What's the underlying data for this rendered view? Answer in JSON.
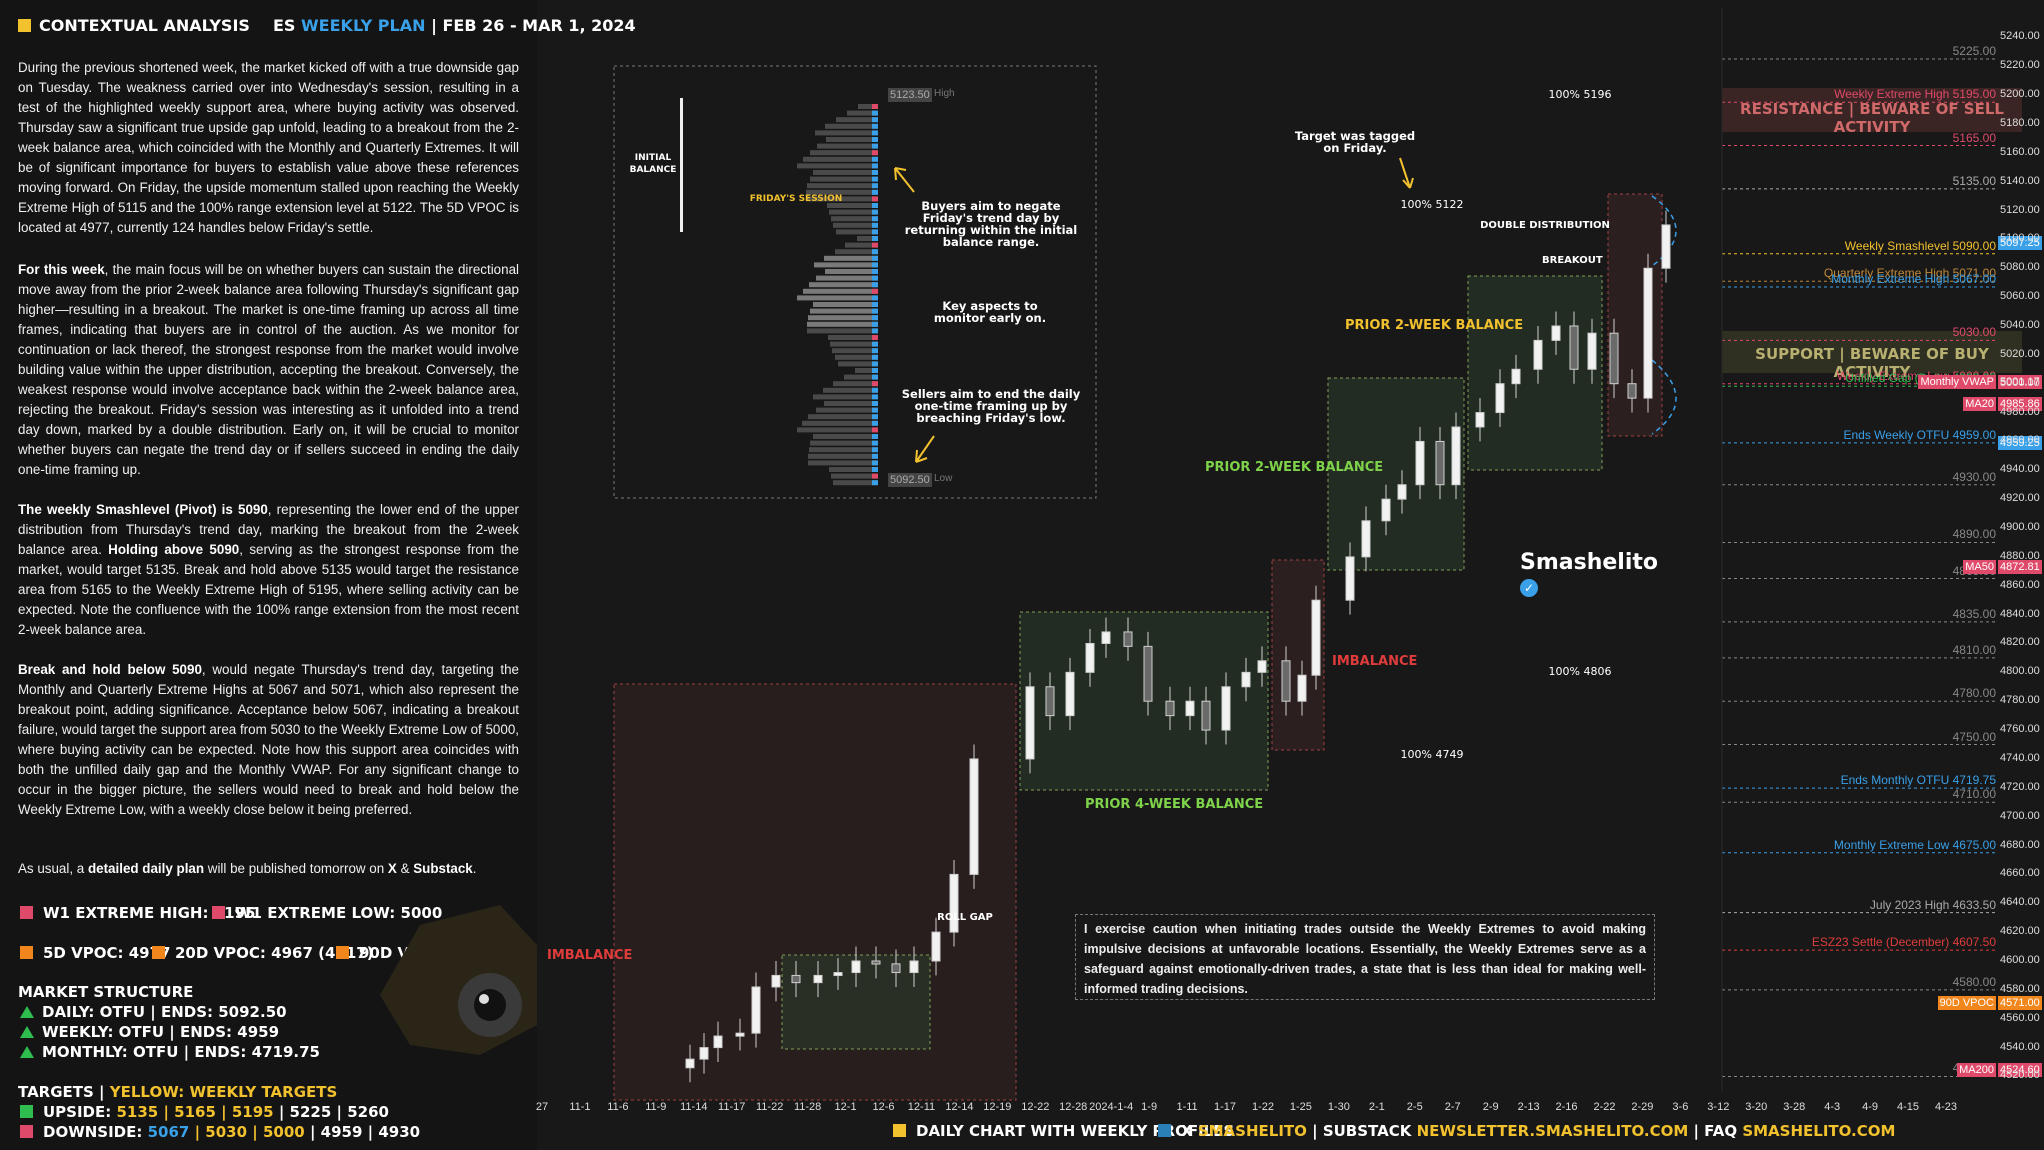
{
  "header": {
    "left_title": "CONTEXTUAL ANALYSIS",
    "right_prefix": "ES",
    "right_highlight": "WEEKLY PLAN",
    "right_suffix": "| FEB 26 - MAR 1, 2024"
  },
  "paragraphs": {
    "p1": "During the previous shortened week, the market kicked off with a true downside gap on Tuesday. The weakness carried over into Wednesday's session, resulting in a test of the highlighted weekly support area, where buying activity was observed. Thursday saw a significant true upside gap unfold, leading to a breakout from the 2-week balance area, which coincided with the Monthly and Quarterly Extremes. It will be of significant importance for buyers to establish value above these references moving forward. On Friday, the upside momentum stalled upon reaching the Weekly Extreme High of 5115 and the 100% range extension level at 5122. The 5D VPOC is located at 4977, currently 124 handles below Friday's settle.",
    "p2_bold": "For this week",
    "p2": ", the main focus will be on whether buyers can sustain the directional move away from the prior 2-week balance area following Thursday's significant gap higher—resulting in a breakout. The market is one-time framing up across all time frames, indicating that buyers are in control of the auction. As we monitor for continuation or lack thereof, the strongest response from the market would involve building value within the upper distribution, accepting the breakout. Conversely, the weakest response would involve acceptance back within the 2-week balance area, rejecting the breakout. Friday's session was interesting as it unfolded into a trend day down, marked by a double distribution. Early on, it will be crucial to monitor whether buyers can negate the trend day or if sellers succeed in ending the daily one-time framing up.",
    "p3_bold1": "The weekly Smashlevel (Pivot) is 5090",
    "p3a": ", representing the lower end of the upper distribution from Thursday's trend day, marking the breakout from the 2-week balance area.",
    "p3_bold2": "Holding above 5090",
    "p3b": ", serving as the strongest response from the market, would target 5135. Break and hold above 5135 would target the resistance area from 5165 to the Weekly Extreme High of 5195, where selling activity can be expected. Note the confluence with the 100% range extension from the most recent 2-week balance area.",
    "p4_bold": "Break and hold below 5090",
    "p4": ", would negate Thursday's trend day, targeting the Monthly and Quarterly Extreme Highs at 5067 and 5071, which also represent the breakout point, adding significance. Acceptance below 5067, indicating a breakout failure, would target the support area from 5030 to the Weekly Extreme Low of 5000, where buying activity can be expected. Note how this support area coincides with both the unfilled daily gap and the Monthly VWAP. For any significant change to occur in the bigger picture, the sellers would need to break and hold below the Weekly Extreme Low, with a weekly close below it being preferred.",
    "p5a": "As usual, a ",
    "p5_bold": "detailed daily plan",
    "p5b": " will be published tomorrow on ",
    "p5_x": "X",
    "p5c": " & ",
    "p5_sub": "Substack",
    "p5d": "."
  },
  "stats": {
    "w1_high": "W1 EXTREME HIGH: 5195",
    "w1_low": "W1 EXTREME LOW: 5000",
    "vpoc5": "5D VPOC: 4977",
    "vpoc20": "20D VPOC: 4967 (4917)",
    "vpoc90": "90D VPOC: 4571",
    "market_structure": "MARKET STRUCTURE",
    "daily": "DAILY: OTFU | ENDS: 5092.50",
    "weekly": "WEEKLY: OTFU | ENDS: 4959",
    "monthly": "MONTHLY: OTFU | ENDS: 4719.75",
    "targets_label": "TARGETS |",
    "targets_yellow": "YELLOW: WEEKLY TARGETS",
    "upside_label": "UPSIDE:",
    "upside_yellow": "5135 | 5165 | 5195",
    "upside_white": "| 5225 | 5260",
    "downside_label": "DOWNSIDE:",
    "downside_blue": "5067",
    "downside_yellow": "| 5030 | 5000",
    "downside_white": "| 4959 | 4930"
  },
  "colors": {
    "accent_yellow": "#f2c12e",
    "accent_blue": "#3aa0e8",
    "extreme_pink": "#e04a6a",
    "vpoc_orange": "#f0861c",
    "up_green": "#2ebd4e",
    "imbalance_red": "#e03c3c",
    "balance_green": "#7fd34a",
    "balance_yellow": "#f2c12e"
  },
  "footer": {
    "chart_label": "DAILY CHART WITH WEEKLY PROFILES",
    "x_label": "X",
    "x_handle": "SMASHELITO",
    "substack_label": "| SUBSTACK",
    "substack_url": "NEWSLETTER.SMASHELITO.COM",
    "faq_label": "| FAQ",
    "faq_url": "SMASHELITO.COM"
  },
  "annotations": {
    "initial_balance": "INITIAL\nBALANCE",
    "fridays_session": "FRIDAY'S SESSION",
    "high": "High",
    "low": "Low",
    "high_price": "5123.50",
    "low_price": "5092.50",
    "buyers_aim": "Buyers aim to negate Friday's trend day by returning within the initial balance range.",
    "key_aspects": "Key aspects to monitor early on.",
    "sellers_aim": "Sellers aim to end the daily one-time framing up by breaching Friday's low.",
    "target_tagged": "Target was tagged on Friday.",
    "double_distribution": "DOUBLE DISTRIBUTION",
    "breakout": "BREAKOUT",
    "prior_2wk_top": "PRIOR 2-WEEK BALANCE",
    "prior_2wk_mid": "PRIOR 2-WEEK BALANCE",
    "prior_4wk": "PRIOR 4-WEEK BALANCE",
    "imbalance_left": "IMBALANCE",
    "imbalance_mid": "IMBALANCE",
    "roll_gap": "ROLL GAP",
    "ext_5196": "100% 5196",
    "ext_5122": "100% 5122",
    "ext_4806": "100% 4806",
    "ext_4749": "100% 4749",
    "brand": "Smashelito",
    "resistance": "RESISTANCE | BEWARE OF SELL ACTIVITY",
    "support": "SUPPORT | BEWARE OF BUY ACTIVITY",
    "note": "I exercise caution when initiating trades outside the Weekly Extremes to avoid making impulsive decisions at unfavorable locations. Essentially, the Weekly Extremes serve as a safeguard against emotionally-driven trades, a state that is less than ideal for making well-informed trading decisions."
  },
  "price_levels": [
    {
      "label": "Weekly Extreme High",
      "value": "5195.00",
      "color": "#e04a6a"
    },
    {
      "label": "",
      "value": "5165.00",
      "color": "#e04a6a"
    },
    {
      "label": "",
      "value": "5135.00",
      "color": "#aaaaaa"
    },
    {
      "label": "Weekly Smashlevel",
      "value": "5090.00",
      "color": "#f2c12e"
    },
    {
      "label": "Quarterly Extreme High",
      "value": "5071.00",
      "color": "#c08a3a"
    },
    {
      "label": "Monthly Extreme High",
      "value": "5067.00",
      "color": "#3aa0e8"
    },
    {
      "label": "",
      "value": "5030.00",
      "color": "#e04a6a"
    },
    {
      "label": "Weekly Extreme Low",
      "value": "5000.00",
      "color": "#e04a6a"
    },
    {
      "label": "Unfilled Gap (Daily)",
      "value": "4998.25",
      "color": "#2ebd4e"
    },
    {
      "label": "Ends Weekly OTFU",
      "value": "4959.00",
      "color": "#3aa0e8"
    },
    {
      "label": "",
      "value": "4930.00",
      "color": "#888888"
    },
    {
      "label": "",
      "value": "4890.00",
      "color": "#888888"
    },
    {
      "label": "",
      "value": "4865.00",
      "color": "#888888"
    },
    {
      "label": "",
      "value": "4835.00",
      "color": "#888888"
    },
    {
      "label": "",
      "value": "4810.00",
      "color": "#888888"
    },
    {
      "label": "",
      "value": "4780.00",
      "color": "#888888"
    },
    {
      "label": "",
      "value": "4750.00",
      "color": "#888888"
    },
    {
      "label": "Ends Monthly OTFU",
      "value": "4719.75",
      "color": "#3aa0e8"
    },
    {
      "label": "",
      "value": "4710.00",
      "color": "#888888"
    },
    {
      "label": "Monthly Extreme Low",
      "value": "4675.00",
      "color": "#3aa0e8"
    },
    {
      "label": "July 2023 High",
      "value": "4633.50",
      "color": "#aaaaaa"
    },
    {
      "label": "ESZ23 Settle (December)",
      "value": "4607.50",
      "color": "#e03c3c"
    },
    {
      "label": "",
      "value": "4580.00",
      "color": "#888888"
    },
    {
      "label": "",
      "value": "4520.00",
      "color": "#888888"
    },
    {
      "label": "",
      "value": "5225.00",
      "color": "#888888"
    }
  ],
  "price_tags": [
    {
      "label": "",
      "value": "5097.25",
      "color": "#3aa0e8"
    },
    {
      "label": "Monthly VWAP",
      "value": "5001.17",
      "color": "#e04a6a"
    },
    {
      "label": "MA20",
      "value": "4985.86",
      "color": "#e04a6a"
    },
    {
      "label": "",
      "value": "4959.25",
      "color": "#3aa0e8"
    },
    {
      "label": "MA50",
      "value": "4872.81",
      "color": "#e04a6a"
    },
    {
      "label": "90D VPOC",
      "value": "4571.00",
      "color": "#f0861c"
    },
    {
      "label": "MA200",
      "value": "4524.60",
      "color": "#e04a6a"
    }
  ],
  "chart_data": {
    "type": "candlestick",
    "title": "DAILY CHART WITH WEEKLY PROFILES",
    "y_axis_ticks": [
      5240,
      5220,
      5200,
      5180,
      5160,
      5140,
      5120,
      5100,
      5080,
      5060,
      5040,
      5020,
      5000,
      4980,
      4960,
      4940,
      4920,
      4900,
      4880,
      4860,
      4840,
      4820,
      4800,
      4780,
      4760,
      4740,
      4720,
      4700,
      4680,
      4660,
      4640,
      4620,
      4600,
      4580,
      4560,
      4540,
      4520
    ],
    "ylim": [
      4512,
      5252
    ],
    "x_axis_ticks": [
      "27",
      "11-1",
      "11-6",
      "11-9",
      "11-14",
      "11-17",
      "11-22",
      "11-28",
      "12-1",
      "12-6",
      "12-11",
      "12-14",
      "12-19",
      "12-22",
      "12-28",
      "2024-1-4",
      "1-9",
      "1-11",
      "1-17",
      "1-22",
      "1-25",
      "1-30",
      "2-1",
      "2-5",
      "2-7",
      "2-9",
      "2-13",
      "2-16",
      "2-22",
      "2-29",
      "3-6",
      "3-12",
      "3-20",
      "3-28",
      "4-3",
      "4-9",
      "4-15",
      "4-23"
    ]
  }
}
